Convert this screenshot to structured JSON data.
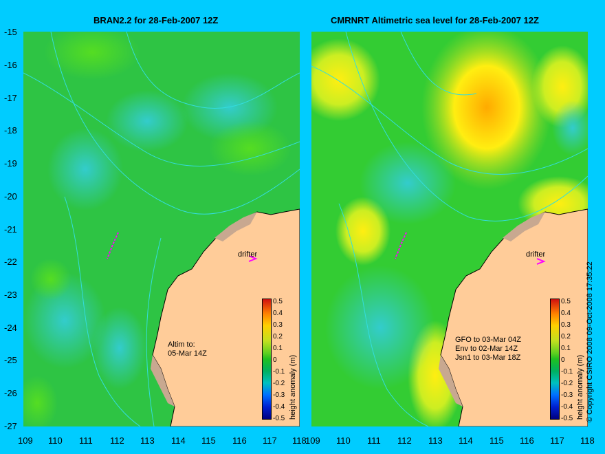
{
  "panels": [
    {
      "title": "BRAN2.2 for 28-Feb-2007 12Z",
      "annotation_lines": [
        "Altim to:",
        "05-Mar 14Z"
      ],
      "drifter_label": "drifter"
    },
    {
      "title": "CMRNRT Altimetric sea level  for 28-Feb-2007 12Z",
      "annotation_lines": [
        "GFO to 03-Mar 04Z",
        "Env to 02-Mar 14Z",
        "Jsn1 to 03-Mar 18Z"
      ],
      "drifter_label": "drifter"
    }
  ],
  "axes": {
    "lat_ticks": [
      "-15",
      "-16",
      "-17",
      "-18",
      "-19",
      "-20",
      "-21",
      "-22",
      "-23",
      "-24",
      "-25",
      "-26",
      "-27"
    ],
    "lon_ticks_left": [
      "109",
      "110",
      "111",
      "112",
      "113",
      "114",
      "115",
      "116",
      "117",
      "118"
    ],
    "lon_ticks_right": [
      "109",
      "110",
      "111",
      "112",
      "113",
      "114",
      "115",
      "116",
      "117",
      "118"
    ]
  },
  "colorbar": {
    "label": "height anomaly (m)",
    "ticks": [
      "0.5",
      "0.4",
      "0.3",
      "0.2",
      "0.1",
      "0",
      "-0.1",
      "-0.2",
      "-0.3",
      "-0.4",
      "-0.5"
    ],
    "colors": [
      "#000080",
      "#0020d0",
      "#0070ff",
      "#00c0c0",
      "#00b060",
      "#20c020",
      "#60d020",
      "#c0e020",
      "#ffd000",
      "#ff8000",
      "#d01010"
    ]
  },
  "copyright": "© Copyright CSIRO 2008    09-Oct-2008 17:35:22",
  "colors": {
    "background": "#00ccff",
    "land": "#ffcc99",
    "reef": "#c8a890",
    "sea_green": "#33cc33"
  }
}
